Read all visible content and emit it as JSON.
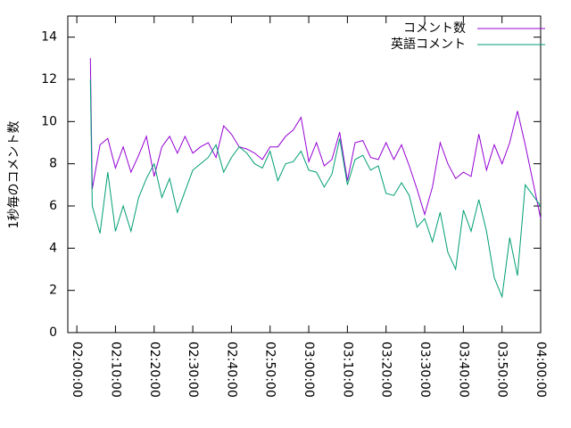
{
  "chart_data": {
    "type": "line",
    "ylabel": "1秒毎のコメント数",
    "xlim": [
      "01:57:40",
      "04:00:00"
    ],
    "xticks": [
      "02:00:00",
      "02:10:00",
      "02:20:00",
      "02:30:00",
      "02:40:00",
      "02:50:00",
      "03:00:00",
      "03:10:00",
      "03:20:00",
      "03:30:00",
      "03:40:00",
      "03:50:00",
      "04:00:00"
    ],
    "ylim": [
      0,
      15
    ],
    "yticks": [
      0,
      2,
      4,
      6,
      8,
      10,
      12,
      14
    ],
    "legend": "top-right",
    "x": [
      "02:03:30",
      "02:04:00",
      "02:06:00",
      "02:08:00",
      "02:10:00",
      "02:12:00",
      "02:14:00",
      "02:16:00",
      "02:18:00",
      "02:20:00",
      "02:22:00",
      "02:24:00",
      "02:26:00",
      "02:28:00",
      "02:30:00",
      "02:32:00",
      "02:34:00",
      "02:36:00",
      "02:38:00",
      "02:40:00",
      "02:42:00",
      "02:44:00",
      "02:46:00",
      "02:48:00",
      "02:50:00",
      "02:52:00",
      "02:54:00",
      "02:56:00",
      "02:58:00",
      "03:00:00",
      "03:02:00",
      "03:04:00",
      "03:06:00",
      "03:08:00",
      "03:10:00",
      "03:12:00",
      "03:14:00",
      "03:16:00",
      "03:18:00",
      "03:20:00",
      "03:22:00",
      "03:24:00",
      "03:26:00",
      "03:28:00",
      "03:30:00",
      "03:32:00",
      "03:34:00",
      "03:36:00",
      "03:38:00",
      "03:40:00",
      "03:42:00",
      "03:44:00",
      "03:46:00",
      "03:48:00",
      "03:50:00",
      "03:52:00",
      "03:54:00",
      "03:56:00",
      "04:00:00"
    ],
    "series": [
      {
        "name": "コメント数",
        "color": "#9400d3",
        "values": [
          13.0,
          6.8,
          8.9,
          9.2,
          7.8,
          8.8,
          7.6,
          8.4,
          9.3,
          7.4,
          8.8,
          9.3,
          8.5,
          9.3,
          8.5,
          8.8,
          9.0,
          8.3,
          9.8,
          9.4,
          8.8,
          8.7,
          8.5,
          8.2,
          8.8,
          8.8,
          9.3,
          9.6,
          10.2,
          8.1,
          9.0,
          7.9,
          8.2,
          9.5,
          7.2,
          9.0,
          9.1,
          8.3,
          8.2,
          9.0,
          8.2,
          8.9,
          7.9,
          6.8,
          5.6,
          6.9,
          9.0,
          8.0,
          7.3,
          7.6,
          7.4,
          9.4,
          7.7,
          8.9,
          8.0,
          9.0,
          10.5,
          8.9,
          5.4
        ]
      },
      {
        "name": "英語コメント",
        "color": "#009e73",
        "values": [
          12.0,
          6.0,
          4.7,
          7.6,
          4.8,
          6.0,
          4.8,
          6.4,
          7.3,
          8.0,
          6.4,
          7.3,
          5.7,
          6.7,
          7.7,
          8.0,
          8.3,
          8.9,
          7.6,
          8.3,
          8.8,
          8.5,
          8.0,
          7.8,
          8.6,
          7.2,
          8.0,
          8.1,
          8.6,
          7.7,
          7.6,
          6.9,
          7.5,
          9.2,
          7.0,
          8.2,
          8.4,
          7.7,
          7.9,
          6.6,
          6.5,
          7.1,
          6.5,
          5.0,
          5.4,
          4.3,
          5.7,
          3.8,
          3.0,
          5.8,
          4.8,
          6.3,
          4.8,
          2.6,
          1.7,
          4.5,
          2.7,
          7.0,
          6.0
        ]
      }
    ]
  }
}
